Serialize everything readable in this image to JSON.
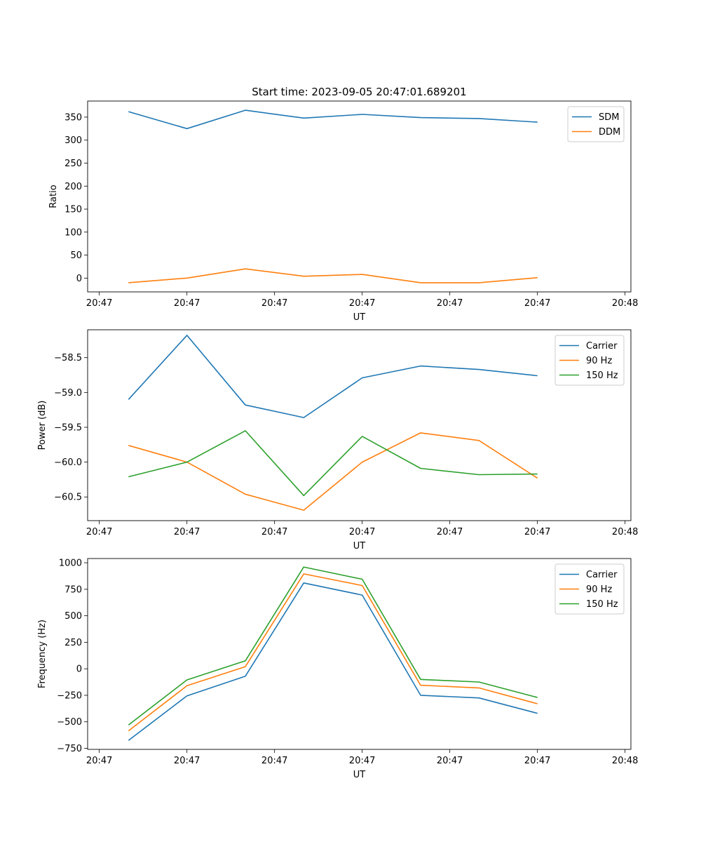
{
  "figure_title": "Start time: 2023-09-05 20:47:01.689201",
  "colors": {
    "blue": "#1f77b4",
    "orange": "#ff7f0e",
    "green": "#2ca02c"
  },
  "chart_data": [
    {
      "type": "line",
      "title": "Start time: 2023-09-05 20:47:01.689201",
      "xlabel": "UT",
      "ylabel": "Ratio",
      "xlim": [
        -0.2,
        9.1
      ],
      "ylim": [
        -30,
        385
      ],
      "x": [
        0.5,
        1.5,
        2.5,
        3.5,
        4.5,
        5.5,
        6.5,
        7.5
      ],
      "xticks": [
        0,
        1.5,
        3,
        4.5,
        6,
        7.5,
        9
      ],
      "xtick_labels": [
        "20:47",
        "20:47",
        "20:47",
        "20:47",
        "20:47",
        "20:47",
        "20:48"
      ],
      "yticks": [
        0,
        50,
        100,
        150,
        200,
        250,
        300,
        350
      ],
      "ytick_labels": [
        "0",
        "50",
        "100",
        "150",
        "200",
        "250",
        "300",
        "350"
      ],
      "legend": "upper-right",
      "series": [
        {
          "name": "SDM",
          "color": "#1f77b4",
          "values": [
            362,
            325,
            365,
            348,
            356,
            349,
            347,
            339
          ]
        },
        {
          "name": "DDM",
          "color": "#ff7f0e",
          "values": [
            -10,
            0,
            20,
            4,
            8,
            -10,
            -10,
            1
          ]
        }
      ]
    },
    {
      "type": "line",
      "title": "",
      "xlabel": "UT",
      "ylabel": "Power (dB)",
      "xlim": [
        -0.2,
        9.1
      ],
      "ylim": [
        -60.84,
        -58.1
      ],
      "x": [
        0.5,
        1.5,
        2.5,
        3.5,
        4.5,
        5.5,
        6.5,
        7.5
      ],
      "xticks": [
        0,
        1.5,
        3,
        4.5,
        6,
        7.5,
        9
      ],
      "xtick_labels": [
        "20:47",
        "20:47",
        "20:47",
        "20:47",
        "20:47",
        "20:47",
        "20:48"
      ],
      "yticks": [
        -58.5,
        -59.0,
        -59.5,
        -60.0,
        -60.5
      ],
      "ytick_labels": [
        "−58.5",
        "−59.0",
        "−59.5",
        "−60.0",
        "−60.5"
      ],
      "legend": "upper-right",
      "series": [
        {
          "name": "Carrier",
          "color": "#1f77b4",
          "values": [
            -59.1,
            -58.18,
            -59.18,
            -59.36,
            -58.79,
            -58.62,
            -58.67,
            -58.76
          ]
        },
        {
          "name": "90 Hz",
          "color": "#ff7f0e",
          "values": [
            -59.76,
            -60.0,
            -60.46,
            -60.69,
            -60.0,
            -59.58,
            -59.69,
            -60.23
          ]
        },
        {
          "name": "150 Hz",
          "color": "#2ca02c",
          "values": [
            -60.21,
            -60.0,
            -59.55,
            -60.48,
            -59.63,
            -60.09,
            -60.18,
            -60.17
          ]
        }
      ]
    },
    {
      "type": "line",
      "title": "",
      "xlabel": "UT",
      "ylabel": "Frequency (Hz)",
      "xlim": [
        -0.2,
        9.1
      ],
      "ylim": [
        -760,
        1040
      ],
      "x": [
        0.5,
        1.5,
        2.5,
        3.5,
        4.5,
        5.5,
        6.5,
        7.5
      ],
      "xticks": [
        0,
        1.5,
        3,
        4.5,
        6,
        7.5,
        9
      ],
      "xtick_labels": [
        "20:47",
        "20:47",
        "20:47",
        "20:47",
        "20:47",
        "20:47",
        "20:48"
      ],
      "yticks": [
        1000,
        750,
        500,
        250,
        0,
        -250,
        -500,
        -750
      ],
      "ytick_labels": [
        "1000",
        "750",
        "500",
        "250",
        "0",
        "−250",
        "−500",
        "−750"
      ],
      "legend": "upper-right",
      "series": [
        {
          "name": "Carrier",
          "color": "#1f77b4",
          "values": [
            -675,
            -255,
            -70,
            810,
            695,
            -250,
            -275,
            -420
          ]
        },
        {
          "name": "90 Hz",
          "color": "#ff7f0e",
          "values": [
            -585,
            -160,
            20,
            895,
            785,
            -155,
            -180,
            -330
          ]
        },
        {
          "name": "150 Hz",
          "color": "#2ca02c",
          "values": [
            -530,
            -105,
            75,
            960,
            845,
            -100,
            -125,
            -270
          ]
        }
      ]
    }
  ]
}
